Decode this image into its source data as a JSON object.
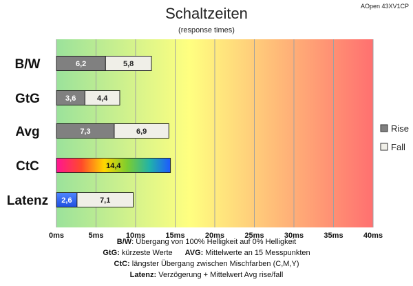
{
  "chart_data": {
    "type": "bar",
    "orientation": "horizontal",
    "stacked": true,
    "title": "Schaltzeiten",
    "subtitle": "(response times)",
    "badge": "AOpen 43XV1CP",
    "categories": [
      "B/W",
      "GtG",
      "Avg",
      "CtC",
      "Latenz"
    ],
    "series": [
      {
        "name": "Rise",
        "color": "#808080",
        "values": [
          6.2,
          3.6,
          7.3,
          null,
          null
        ]
      },
      {
        "name": "Fall",
        "color": "#f0efe8",
        "values": [
          5.8,
          4.4,
          6.9,
          null,
          7.1
        ]
      }
    ],
    "ctc_value": 14.4,
    "latency_delay": 2.6,
    "value_labels": [
      [
        "6,2",
        "5,8"
      ],
      [
        "3,6",
        "4,4"
      ],
      [
        "7,3",
        "6,9"
      ],
      [
        "14,4"
      ],
      [
        "2,6",
        "7,1"
      ]
    ],
    "x_ticks": [
      0,
      5,
      10,
      15,
      20,
      25,
      30,
      35,
      40
    ],
    "x_tick_labels": [
      "0ms",
      "5ms",
      "10ms",
      "15ms",
      "20ms",
      "25ms",
      "30ms",
      "35ms",
      "40ms"
    ],
    "xlim": [
      0,
      40
    ],
    "grid": true,
    "legend_position": "right",
    "background_gradient": [
      "#9be29b",
      "#ffff80",
      "#ff7070"
    ],
    "footnotes": [
      {
        "bold": "B/W",
        "text": ":  Übergang von 100% Helligkeit auf 0% Helligkeit"
      },
      {
        "bold": "GtG:",
        "text": " kürzeste  Werte",
        "bold2": "AVG:",
        "text2": " Mittelwerte  an 15 Messpunkten"
      },
      {
        "bold": "CtC:",
        "text": " längster Übergang  zwischen Mischfarben  (C,M,Y)"
      },
      {
        "bold": "Latenz:",
        "text": " Verzögerung  + Mittelwert  Avg rise/fall"
      }
    ]
  }
}
